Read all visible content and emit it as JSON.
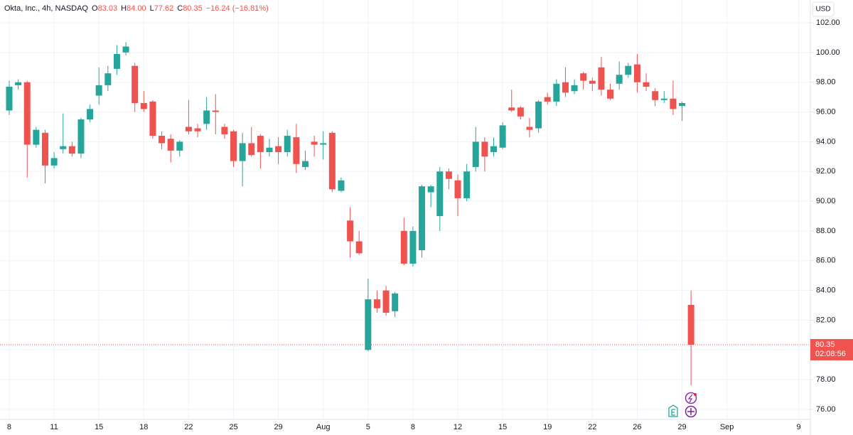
{
  "header": {
    "symbol": "Okta, Inc., 4h, NASDAQ",
    "o": "O",
    "open": 83.03,
    "h": "H",
    "high": {
      "value": 84,
      "label": "84.00"
    },
    "l": "L",
    "low": 77.62,
    "c": "C",
    "close": 80.35,
    "change": "−16.24 (−16.81%)"
  },
  "currency": "USD",
  "price_tag": {
    "price": 80.35,
    "countdown": "02:08:56"
  },
  "chart_data": {
    "type": "candlestick",
    "up_color": "#26a69a",
    "down_color": "#ef5350",
    "grid": true,
    "x": [
      0,
      1,
      2,
      3,
      4,
      5,
      6,
      7,
      8,
      9,
      10,
      11,
      12,
      13,
      14,
      15,
      16,
      17,
      18,
      19,
      20,
      21,
      22,
      23,
      24,
      25,
      26,
      27,
      28,
      29,
      30,
      31,
      32,
      33,
      34,
      35,
      36,
      37,
      38,
      39,
      40,
      41,
      42,
      43,
      44,
      45,
      46,
      47,
      48,
      49,
      50,
      51,
      52,
      53,
      54,
      55,
      56,
      57,
      58,
      59,
      60,
      61,
      62,
      63,
      64,
      65,
      66,
      67,
      68,
      69,
      70,
      71,
      72,
      73,
      74,
      75,
      76
    ],
    "open": [
      96.1,
      97.8,
      98.0,
      93.8,
      94.6,
      92.4,
      93.5,
      93.7,
      93.2,
      95.5,
      97.1,
      97.8,
      98.9,
      100.0,
      99.1,
      96.6,
      96.7,
      94.4,
      94.2,
      93.4,
      95.0,
      94.9,
      95.2,
      96.1,
      95.0,
      94.7,
      92.7,
      93.9,
      94.4,
      93.3,
      93.7,
      93.3,
      94.3,
      92.3,
      94.0,
      93.8,
      94.6,
      90.7,
      88.7,
      87.3,
      80.0,
      83.4,
      84.0,
      82.6,
      88.0,
      85.8,
      86.7,
      90.6,
      89.0,
      92.0,
      91.4,
      90.2,
      92.3,
      94.0,
      93.3,
      93.6,
      96.3,
      96.3,
      95.0,
      94.9,
      97.0,
      96.7,
      98.0,
      97.4,
      98.6,
      98.1,
      99.0,
      97.5,
      97.9,
      98.5,
      99.2,
      98.0,
      97.4,
      96.8,
      96.9,
      96.4,
      83.03
    ],
    "high": [
      98.1,
      98.2,
      98.1,
      95.0,
      94.8,
      93.3,
      95.9,
      94.0,
      95.6,
      96.5,
      99.0,
      99.1,
      100.5,
      100.7,
      99.3,
      97.4,
      96.8,
      94.7,
      94.5,
      94.1,
      96.8,
      95.2,
      97.0,
      97.2,
      95.2,
      94.8,
      94.6,
      95.0,
      94.5,
      94.2,
      94.3,
      94.8,
      95.2,
      93.4,
      94.4,
      94.7,
      94.7,
      91.6,
      89.6,
      88.0,
      84.8,
      84.0,
      84.3,
      83.9,
      88.9,
      88.3,
      91.1,
      91.1,
      92.3,
      92.2,
      91.8,
      92.5,
      95.0,
      94.3,
      94.3,
      95.3,
      97.5,
      96.4,
      95.6,
      96.8,
      97.3,
      98.2,
      99.0,
      98.2,
      98.7,
      98.3,
      99.7,
      97.9,
      99.4,
      99.3,
      99.9,
      98.6,
      97.6,
      97.4,
      98.1,
      96.7,
      84.0
    ],
    "low": [
      95.8,
      97.5,
      91.6,
      93.6,
      91.2,
      92.2,
      93.2,
      93.0,
      92.9,
      95.3,
      96.5,
      97.4,
      98.5,
      99.8,
      96.0,
      96.0,
      94.2,
      93.5,
      92.6,
      93.0,
      94.5,
      94.3,
      94.8,
      94.5,
      94.2,
      92.3,
      91.0,
      93.0,
      92.2,
      93.0,
      92.5,
      93.0,
      91.9,
      92.1,
      93.0,
      92.8,
      90.6,
      90.6,
      86.2,
      86.4,
      79.9,
      82.5,
      82.3,
      82.2,
      85.7,
      85.6,
      86.2,
      89.6,
      88.0,
      90.8,
      89.0,
      90.0,
      92.0,
      92.0,
      93.0,
      93.5,
      96.0,
      95.5,
      94.3,
      94.6,
      96.5,
      96.4,
      97.0,
      97.2,
      97.5,
      97.4,
      97.1,
      96.8,
      97.5,
      98.3,
      97.3,
      97.4,
      96.4,
      96.6,
      95.8,
      95.4,
      77.62
    ],
    "close": [
      97.7,
      98.0,
      93.8,
      94.8,
      92.4,
      92.9,
      93.7,
      93.2,
      95.5,
      96.2,
      97.8,
      98.6,
      99.9,
      100.4,
      96.6,
      96.2,
      94.4,
      93.9,
      93.4,
      94.0,
      94.7,
      94.7,
      96.1,
      96.0,
      94.5,
      92.7,
      93.9,
      93.1,
      93.3,
      93.6,
      93.3,
      94.4,
      92.5,
      92.7,
      93.8,
      93.9,
      90.8,
      91.4,
      87.3,
      86.5,
      83.4,
      82.8,
      82.5,
      83.8,
      85.8,
      88.0,
      91.0,
      91.0,
      92.0,
      91.5,
      90.2,
      92.0,
      94.0,
      93.0,
      93.7,
      95.1,
      96.1,
      95.7,
      94.8,
      96.7,
      96.7,
      97.9,
      97.3,
      97.8,
      98.1,
      97.9,
      97.5,
      96.9,
      98.5,
      99.1,
      98.0,
      97.7,
      96.8,
      96.9,
      96.2,
      96.6,
      80.35
    ],
    "xlim": [
      -1.03,
      89.3
    ],
    "xticks": [
      {
        "value": 0,
        "label": "8"
      },
      {
        "value": 5,
        "label": "11"
      },
      {
        "value": 10,
        "label": "15"
      },
      {
        "value": 15,
        "label": "18"
      },
      {
        "value": 20,
        "label": "22"
      },
      {
        "value": 25,
        "label": "25"
      },
      {
        "value": 30,
        "label": "29"
      },
      {
        "value": 35,
        "label": "Aug"
      },
      {
        "value": 40,
        "label": "5"
      },
      {
        "value": 45,
        "label": "8"
      },
      {
        "value": 50,
        "label": "12"
      },
      {
        "value": 55,
        "label": "15"
      },
      {
        "value": 60,
        "label": "19"
      },
      {
        "value": 65,
        "label": "22"
      },
      {
        "value": 70,
        "label": "26"
      },
      {
        "value": 75,
        "label": "29"
      },
      {
        "value": 80,
        "label": "Sep"
      },
      {
        "value": 88,
        "label": "9"
      }
    ],
    "ylim": [
      75.33,
      103.53
    ],
    "yticks": [
      {
        "value": 76,
        "label": "76.00"
      },
      {
        "value": 78,
        "label": "78.00"
      },
      {
        "value": 80,
        "label": "80.00"
      },
      {
        "value": 82,
        "label": "82.00"
      },
      {
        "value": 84,
        "label": "84.00"
      },
      {
        "value": 86,
        "label": "86.00"
      },
      {
        "value": 88,
        "label": "88.00"
      },
      {
        "value": 90,
        "label": "90.00"
      },
      {
        "value": 92,
        "label": "92.00"
      },
      {
        "value": 94,
        "label": "94.00"
      },
      {
        "value": 96,
        "label": "96.00"
      },
      {
        "value": 98,
        "label": "98.00"
      },
      {
        "value": 100,
        "label": "100.00"
      },
      {
        "value": 102,
        "label": "102.00"
      }
    ]
  }
}
